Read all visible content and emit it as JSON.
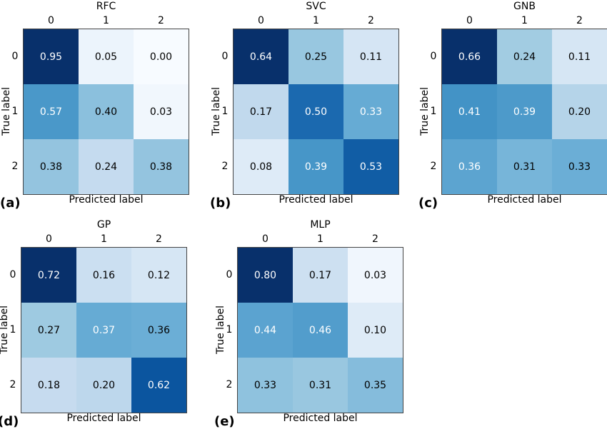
{
  "chart_data": [
    {
      "type": "heatmap",
      "title": "RFC",
      "panel_label": "(a)",
      "xlabel": "Predicted label",
      "ylabel": "True label",
      "x_ticks": [
        "0",
        "1",
        "2"
      ],
      "y_ticks": [
        "0",
        "1",
        "2"
      ],
      "values": [
        [
          0.95,
          0.05,
          0.0
        ],
        [
          0.57,
          0.4,
          0.03
        ],
        [
          0.38,
          0.24,
          0.38
        ]
      ],
      "labels": [
        [
          "0.95",
          "0.05",
          "0.00"
        ],
        [
          "0.57",
          "0.40",
          "0.03"
        ],
        [
          "0.38",
          "0.24",
          "0.38"
        ]
      ],
      "colormap": "Blues"
    },
    {
      "type": "heatmap",
      "title": "SVC",
      "panel_label": "(b)",
      "xlabel": "Predicted label",
      "ylabel": "True label",
      "x_ticks": [
        "0",
        "1",
        "2"
      ],
      "y_ticks": [
        "0",
        "1",
        "2"
      ],
      "values": [
        [
          0.64,
          0.25,
          0.11
        ],
        [
          0.17,
          0.5,
          0.33
        ],
        [
          0.08,
          0.39,
          0.53
        ]
      ],
      "labels": [
        [
          "0.64",
          "0.25",
          "0.11"
        ],
        [
          "0.17",
          "0.50",
          "0.33"
        ],
        [
          "0.08",
          "0.39",
          "0.53"
        ]
      ],
      "colormap": "Blues"
    },
    {
      "type": "heatmap",
      "title": "GNB",
      "panel_label": "(c)",
      "xlabel": "Predicted label",
      "ylabel": "True label",
      "x_ticks": [
        "0",
        "1",
        "2"
      ],
      "y_ticks": [
        "0",
        "1",
        "2"
      ],
      "values": [
        [
          0.66,
          0.24,
          0.11
        ],
        [
          0.41,
          0.39,
          0.2
        ],
        [
          0.36,
          0.31,
          0.33
        ]
      ],
      "labels": [
        [
          "0.66",
          "0.24",
          "0.11"
        ],
        [
          "0.41",
          "0.39",
          "0.20"
        ],
        [
          "0.36",
          "0.31",
          "0.33"
        ]
      ],
      "colormap": "Blues"
    },
    {
      "type": "heatmap",
      "title": "GP",
      "panel_label": "(d)",
      "xlabel": "Predicted label",
      "ylabel": "True label",
      "x_ticks": [
        "0",
        "1",
        "2"
      ],
      "y_ticks": [
        "0",
        "1",
        "2"
      ],
      "values": [
        [
          0.72,
          0.16,
          0.12
        ],
        [
          0.27,
          0.37,
          0.36
        ],
        [
          0.18,
          0.2,
          0.62
        ]
      ],
      "labels": [
        [
          "0.72",
          "0.16",
          "0.12"
        ],
        [
          "0.27",
          "0.37",
          "0.36"
        ],
        [
          "0.18",
          "0.20",
          "0.62"
        ]
      ],
      "colormap": "Blues"
    },
    {
      "type": "heatmap",
      "title": "MLP",
      "panel_label": "(e)",
      "xlabel": "Predicted label",
      "ylabel": "True label",
      "x_ticks": [
        "0",
        "1",
        "2"
      ],
      "y_ticks": [
        "0",
        "1",
        "2"
      ],
      "values": [
        [
          0.8,
          0.17,
          0.03
        ],
        [
          0.44,
          0.46,
          0.1
        ],
        [
          0.33,
          0.31,
          0.35
        ]
      ],
      "labels": [
        [
          "0.80",
          "0.17",
          "0.03"
        ],
        [
          "0.44",
          "0.46",
          "0.10"
        ],
        [
          "0.33",
          "0.31",
          "0.35"
        ]
      ],
      "colormap": "Blues"
    }
  ]
}
